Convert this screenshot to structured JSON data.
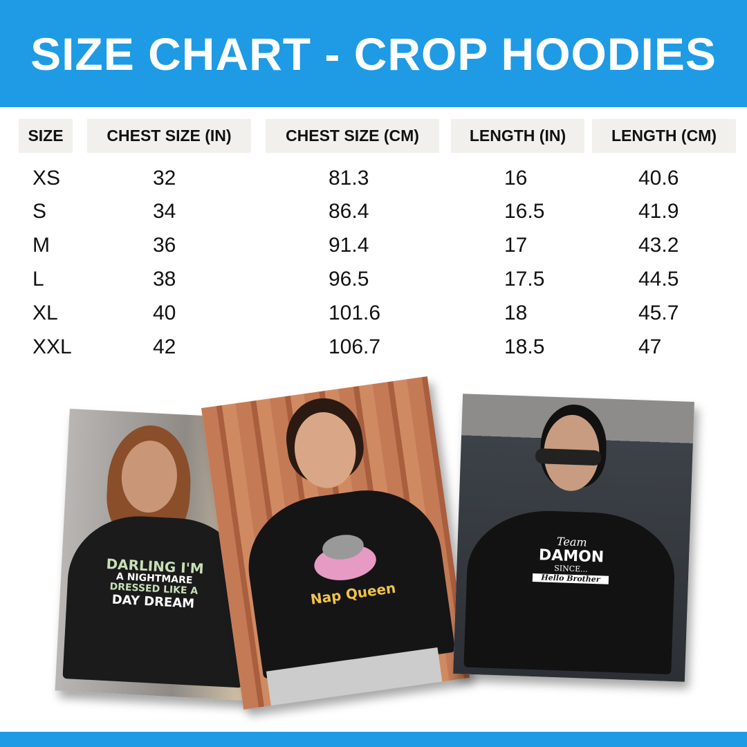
{
  "title": "SIZE CHART - CROP HOODIES",
  "colors": {
    "brand": "#1e9be4",
    "header_cell": "#f1f0ec"
  },
  "table": {
    "headers": [
      "SIZE",
      "CHEST SIZE (IN)",
      "CHEST SIZE (CM)",
      "LENGTH (IN)",
      "LENGTH (CM)"
    ],
    "rows": [
      [
        "XS",
        "32",
        "81.3",
        "16",
        "40.6"
      ],
      [
        "S",
        "34",
        "86.4",
        "16.5",
        "41.9"
      ],
      [
        "M",
        "36",
        "91.4",
        "17",
        "43.2"
      ],
      [
        "L",
        "38",
        "96.5",
        "17.5",
        "44.5"
      ],
      [
        "XL",
        "40",
        "101.6",
        "18",
        "45.7"
      ],
      [
        "XXL",
        "42",
        "106.7",
        "18.5",
        "47"
      ]
    ]
  },
  "photos": [
    {
      "print": [
        "DARLING I'M",
        "A NIGHTMARE",
        "DRESSED LIKE A",
        "DAY DREAM"
      ]
    },
    {
      "print": [
        "Nap Queen"
      ]
    },
    {
      "print": [
        "Team",
        "DAMON",
        "SINCE...",
        "Hello Brother"
      ]
    }
  ]
}
